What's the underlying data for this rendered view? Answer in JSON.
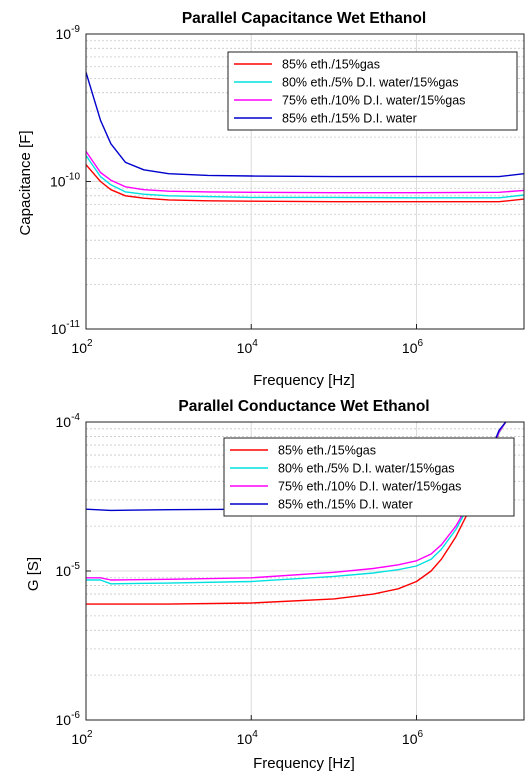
{
  "chart_data": [
    {
      "type": "line",
      "title": "Parallel Capacitance Wet Ethanol",
      "xlabel": "Frequency [Hz]",
      "ylabel": "Capacitance [F]",
      "xscale": "log",
      "yscale": "log",
      "xlim": [
        100,
        20000000
      ],
      "ylim": [
        1e-11,
        1e-09
      ],
      "xticks": [
        {
          "base": "10",
          "exp": "2",
          "value": 100
        },
        {
          "base": "10",
          "exp": "4",
          "value": 10000
        },
        {
          "base": "10",
          "exp": "6",
          "value": 1000000
        }
      ],
      "yticks": [
        {
          "base": "10",
          "exp": "-11",
          "value": 1e-11
        },
        {
          "base": "10",
          "exp": "-10",
          "value": 1e-10
        },
        {
          "base": "10",
          "exp": "-9",
          "value": 1e-09
        }
      ],
      "grid": true,
      "legend_position": "top-right",
      "series": [
        {
          "name": "85% eth./15%gas",
          "color": "#ff0000",
          "x": [
            100,
            150,
            200,
            300,
            500,
            1000,
            3000,
            10000,
            100000,
            1000000,
            10000000,
            20000000
          ],
          "y": [
            1.3e-10,
            1e-10,
            8.8e-11,
            8e-11,
            7.7e-11,
            7.5e-11,
            7.4e-11,
            7.35e-11,
            7.3e-11,
            7.3e-11,
            7.3e-11,
            7.6e-11
          ]
        },
        {
          "name": "80% eth./5% D.I. water/15%gas",
          "color": "#00e0e0",
          "x": [
            100,
            150,
            200,
            300,
            500,
            1000,
            3000,
            10000,
            100000,
            1000000,
            10000000,
            20000000
          ],
          "y": [
            1.5e-10,
            1.08e-10,
            9.5e-11,
            8.5e-11,
            8.2e-11,
            8e-11,
            7.9e-11,
            7.8e-11,
            7.8e-11,
            7.75e-11,
            7.75e-11,
            8.1e-11
          ]
        },
        {
          "name": "75% eth./10% D.I. water/15%gas",
          "color": "#ff00ff",
          "x": [
            100,
            150,
            200,
            300,
            500,
            1000,
            3000,
            10000,
            100000,
            1000000,
            10000000,
            20000000
          ],
          "y": [
            1.6e-10,
            1.15e-10,
            1.02e-10,
            9.2e-11,
            8.8e-11,
            8.6e-11,
            8.5e-11,
            8.45e-11,
            8.4e-11,
            8.4e-11,
            8.45e-11,
            8.7e-11
          ]
        },
        {
          "name": "85% eth./15% D.I. water",
          "color": "#0000cc",
          "x": [
            100,
            150,
            200,
            300,
            500,
            1000,
            3000,
            10000,
            100000,
            1000000,
            10000000,
            20000000
          ],
          "y": [
            5.5e-10,
            2.6e-10,
            1.8e-10,
            1.35e-10,
            1.2e-10,
            1.13e-10,
            1.1e-10,
            1.09e-10,
            1.08e-10,
            1.08e-10,
            1.08e-10,
            1.13e-10
          ]
        }
      ]
    },
    {
      "type": "line",
      "title": "Parallel Conductance Wet Ethanol",
      "xlabel": "Frequency [Hz]",
      "ylabel": "G [S]",
      "xscale": "log",
      "yscale": "log",
      "xlim": [
        100,
        20000000
      ],
      "ylim": [
        1e-06,
        0.0001
      ],
      "xticks": [
        {
          "base": "10",
          "exp": "2",
          "value": 100
        },
        {
          "base": "10",
          "exp": "4",
          "value": 10000
        },
        {
          "base": "10",
          "exp": "6",
          "value": 1000000
        }
      ],
      "yticks": [
        {
          "base": "10",
          "exp": "-6",
          "value": 1e-06
        },
        {
          "base": "10",
          "exp": "-5",
          "value": 1e-05
        },
        {
          "base": "10",
          "exp": "-4",
          "value": 0.0001
        }
      ],
      "grid": true,
      "legend_position": "top-right",
      "series": [
        {
          "name": "85% eth./15%gas",
          "color": "#ff0000",
          "x": [
            100,
            1000,
            10000,
            100000,
            300000,
            600000,
            1000000,
            1500000,
            2000000,
            3000000,
            5000000,
            8000000,
            10000000,
            12000000
          ],
          "y": [
            6e-06,
            6e-06,
            6.1e-06,
            6.5e-06,
            7e-06,
            7.6e-06,
            8.5e-06,
            1e-05,
            1.2e-05,
            1.7e-05,
            3e-05,
            6e-05,
            8.5e-05,
            0.0001
          ]
        },
        {
          "name": "80% eth./5% D.I. water/15%gas",
          "color": "#00e0e0",
          "x": [
            100,
            150,
            200,
            1000,
            10000,
            100000,
            300000,
            600000,
            1000000,
            1500000,
            2000000,
            3000000,
            5000000,
            8000000,
            10000000,
            12000000
          ],
          "y": [
            8.7e-06,
            8.7e-06,
            8.2e-06,
            8.3e-06,
            8.5e-06,
            9.2e-06,
            9.7e-06,
            1.02e-05,
            1.08e-05,
            1.2e-05,
            1.4e-05,
            1.9e-05,
            3.2e-05,
            6.2e-05,
            8.5e-05,
            0.0001
          ]
        },
        {
          "name": "75% eth./10% D.I. water/15%gas",
          "color": "#ff00ff",
          "x": [
            100,
            150,
            200,
            1000,
            10000,
            100000,
            300000,
            600000,
            1000000,
            1500000,
            2000000,
            3000000,
            5000000,
            8000000,
            10000000,
            12000000
          ],
          "y": [
            9e-06,
            9e-06,
            8.7e-06,
            8.8e-06,
            9e-06,
            9.8e-06,
            1.04e-05,
            1.1e-05,
            1.17e-05,
            1.3e-05,
            1.5e-05,
            2e-05,
            3.3e-05,
            6.3e-05,
            8.6e-05,
            0.0001
          ]
        },
        {
          "name": "85% eth./15% D.I. water",
          "color": "#0000cc",
          "x": [
            100,
            200,
            1000,
            10000,
            100000,
            1000000,
            2000000,
            3000000,
            5000000,
            8000000,
            10000000,
            12000000
          ],
          "y": [
            2.6e-05,
            2.55e-05,
            2.58e-05,
            2.6e-05,
            2.65e-05,
            2.7e-05,
            2.8e-05,
            3e-05,
            3.8e-05,
            6.5e-05,
            8.8e-05,
            0.0001
          ]
        }
      ]
    }
  ]
}
